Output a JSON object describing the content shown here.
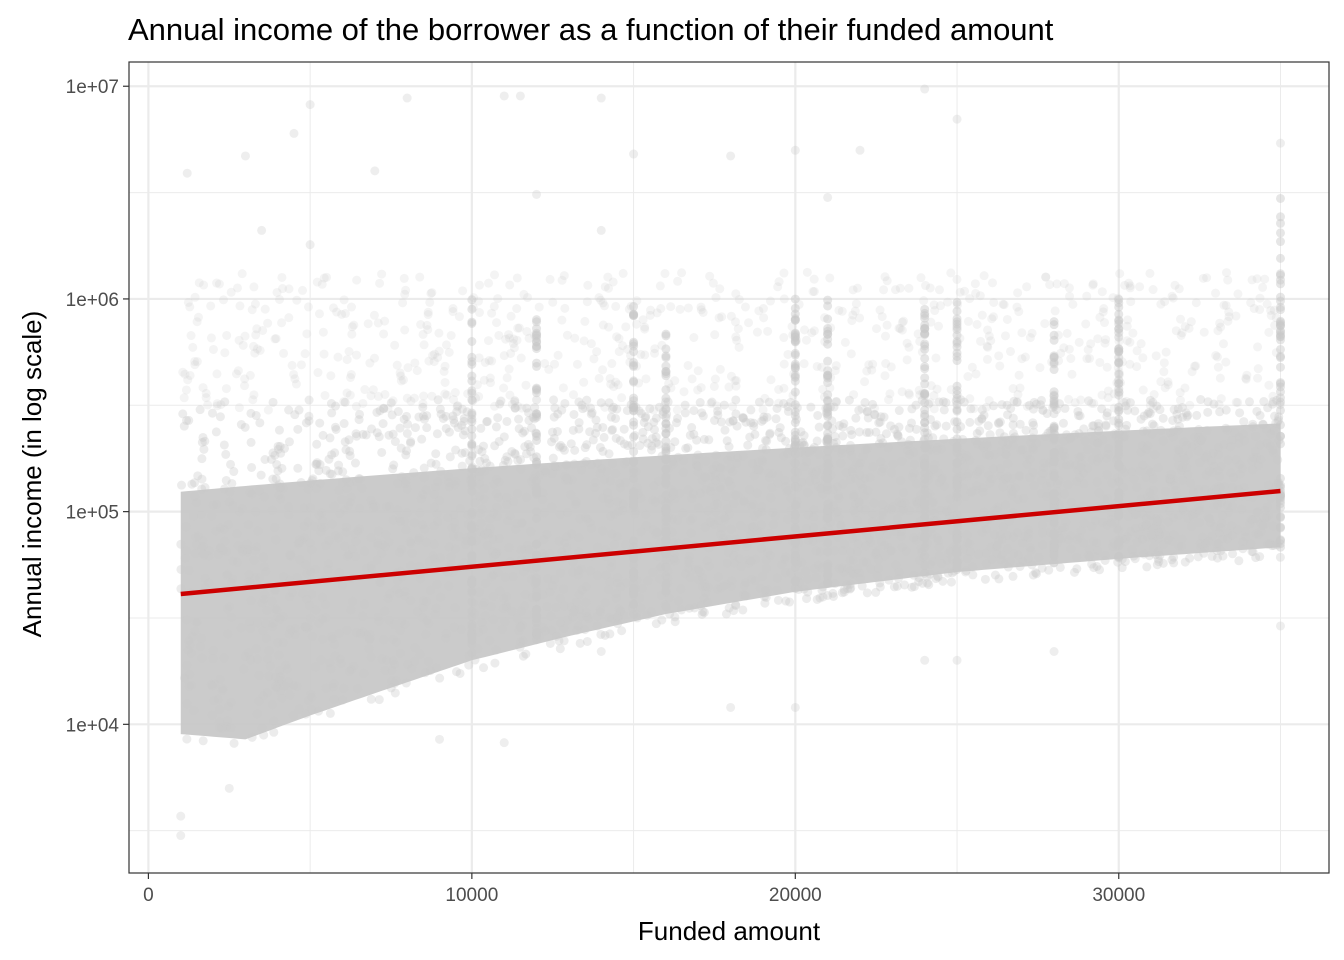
{
  "chart_data": {
    "type": "scatter",
    "title": "Annual income of the borrower as a function of their funded amount",
    "xlabel": "Funded amount",
    "ylabel": "Annual income (in log scale)",
    "x_scale": "linear",
    "y_scale": "log10",
    "xlim": [
      -600,
      36500
    ],
    "ylim": [
      2000,
      13000000
    ],
    "x_ticks": [
      0,
      10000,
      20000,
      30000
    ],
    "x_tick_labels": [
      "0",
      "10000",
      "20000",
      "30000"
    ],
    "y_ticks": [
      10000,
      100000,
      1000000,
      10000000
    ],
    "y_tick_labels": [
      "1e+04",
      "1e+05",
      "1e+06",
      "1e+07"
    ],
    "grid": true,
    "legend": "none",
    "colors": {
      "points": "#c8c8c8",
      "trend_line": "#cc0000",
      "grid": "#ebebeb",
      "panel_border": "#333333",
      "tick_text": "#4d4d4d"
    },
    "point_cloud": {
      "x_range": [
        1000,
        35000
      ],
      "y_upper_main": 300000,
      "y_lower_envelope": [
        {
          "x": 1000,
          "y": 9000
        },
        {
          "x": 3000,
          "y": 8500
        },
        {
          "x": 5000,
          "y": 11000
        },
        {
          "x": 7000,
          "y": 14000
        },
        {
          "x": 10000,
          "y": 20000
        },
        {
          "x": 13000,
          "y": 26000
        },
        {
          "x": 16000,
          "y": 33000
        },
        {
          "x": 20000,
          "y": 42000
        },
        {
          "x": 25000,
          "y": 52000
        },
        {
          "x": 30000,
          "y": 60000
        },
        {
          "x": 35000,
          "y": 68000
        }
      ],
      "dense_columns": [
        {
          "x": 10000,
          "y_max": 1000000
        },
        {
          "x": 12000,
          "y_max": 1000000
        },
        {
          "x": 15000,
          "y_max": 1000000
        },
        {
          "x": 16000,
          "y_max": 700000
        },
        {
          "x": 20000,
          "y_max": 1000000
        },
        {
          "x": 21000,
          "y_max": 1000000
        },
        {
          "x": 24000,
          "y_max": 1000000
        },
        {
          "x": 25000,
          "y_max": 1000000
        },
        {
          "x": 28000,
          "y_max": 800000
        },
        {
          "x": 30000,
          "y_max": 1000000
        },
        {
          "x": 35000,
          "y_max": 3000000
        }
      ],
      "outliers": [
        {
          "x": 1200,
          "y": 3900000
        },
        {
          "x": 3000,
          "y": 4700000
        },
        {
          "x": 4500,
          "y": 6000000
        },
        {
          "x": 5000,
          "y": 8200000
        },
        {
          "x": 7000,
          "y": 4000000
        },
        {
          "x": 8000,
          "y": 8800000
        },
        {
          "x": 11000,
          "y": 9000000
        },
        {
          "x": 11500,
          "y": 9000000
        },
        {
          "x": 12000,
          "y": 3100000
        },
        {
          "x": 14000,
          "y": 8800000
        },
        {
          "x": 15000,
          "y": 4800000
        },
        {
          "x": 18000,
          "y": 4700000
        },
        {
          "x": 20000,
          "y": 5000000
        },
        {
          "x": 21000,
          "y": 3000000
        },
        {
          "x": 22000,
          "y": 5000000
        },
        {
          "x": 24000,
          "y": 9700000
        },
        {
          "x": 25000,
          "y": 7000000
        },
        {
          "x": 35000,
          "y": 5400000
        },
        {
          "x": 3500,
          "y": 2100000
        },
        {
          "x": 5000,
          "y": 1800000
        },
        {
          "x": 14000,
          "y": 2100000
        },
        {
          "x": 1000,
          "y": 3000
        },
        {
          "x": 1000,
          "y": 3700
        },
        {
          "x": 2500,
          "y": 5000
        },
        {
          "x": 9000,
          "y": 8500
        },
        {
          "x": 11000,
          "y": 8200
        },
        {
          "x": 14000,
          "y": 22000
        },
        {
          "x": 18000,
          "y": 12000
        },
        {
          "x": 20000,
          "y": 12000
        },
        {
          "x": 24000,
          "y": 20000
        },
        {
          "x": 25000,
          "y": 20000
        },
        {
          "x": 28000,
          "y": 22000
        },
        {
          "x": 35000,
          "y": 29000
        }
      ]
    },
    "series": [
      {
        "type": "trend_line",
        "x": [
          1000,
          35000
        ],
        "y": [
          41000,
          125000
        ]
      }
    ]
  }
}
